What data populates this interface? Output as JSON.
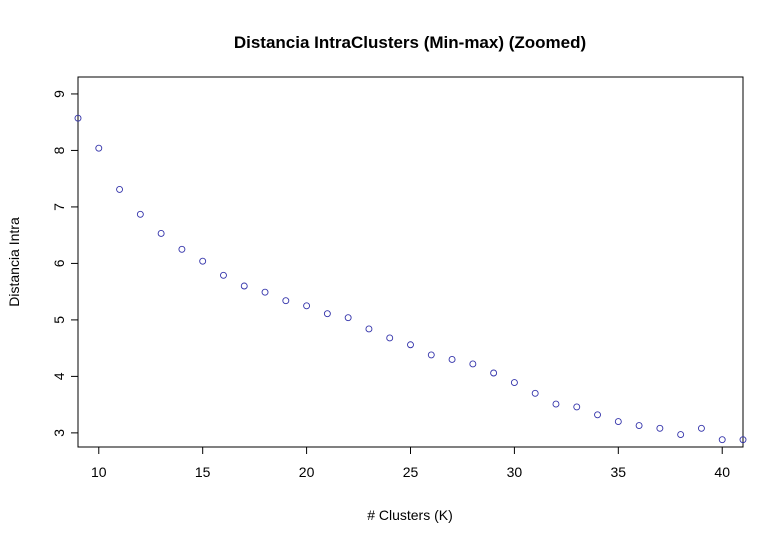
{
  "chart_data": {
    "type": "scatter",
    "title": "Distancia IntraClusters (Min-max) (Zoomed)",
    "xlabel": "# Clusters (K)",
    "ylabel": "Distancia Intra",
    "xlim": [
      9,
      41
    ],
    "ylim": [
      2.75,
      9.3
    ],
    "xticks": [
      10,
      15,
      20,
      25,
      30,
      35,
      40
    ],
    "yticks": [
      3,
      4,
      5,
      6,
      7,
      8,
      9
    ],
    "grid": false,
    "point_color": "#3333aa",
    "series": [
      {
        "x": [
          9,
          10,
          11,
          12,
          13,
          14,
          15,
          16,
          17,
          18,
          19,
          20,
          21,
          22,
          23,
          24,
          25,
          26,
          27,
          28,
          29,
          30,
          31,
          32,
          33,
          34,
          35,
          36,
          37,
          38,
          39,
          40,
          41
        ],
        "y": [
          8.57,
          8.04,
          7.31,
          6.87,
          6.53,
          6.25,
          6.04,
          5.79,
          5.6,
          5.49,
          5.34,
          5.25,
          5.11,
          5.04,
          4.84,
          4.68,
          4.56,
          4.38,
          4.3,
          4.22,
          4.06,
          3.89,
          3.7,
          3.51,
          3.46,
          3.32,
          3.2,
          3.13,
          3.08,
          2.97,
          3.08,
          2.88,
          2.88
        ]
      }
    ]
  }
}
